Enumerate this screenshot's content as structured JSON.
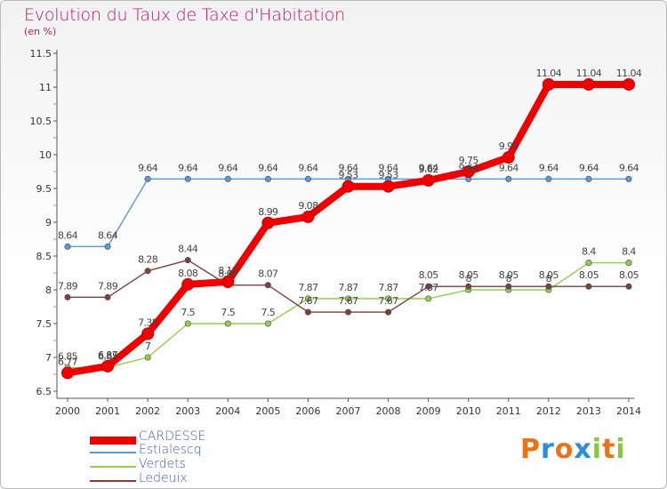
{
  "header": {
    "title": "Evolution du Taux de Taxe d'Habitation",
    "subtitle": "(en %)"
  },
  "logo": {
    "text": "Proxiti",
    "letters": [
      {
        "ch": "P",
        "color": "#e8731a"
      },
      {
        "ch": "r",
        "color": "#2a8fd6"
      },
      {
        "ch": "o",
        "color": "#e8731a"
      },
      {
        "ch": "x",
        "color": "#2a8fd6"
      },
      {
        "ch": "i",
        "color": "#8cc63f"
      },
      {
        "ch": "t",
        "color": "#e8731a"
      },
      {
        "ch": "i",
        "color": "#8cc63f"
      }
    ]
  },
  "chart_data": {
    "type": "line",
    "title": "Evolution du Taux de Taxe d'Habitation",
    "ylabel": "(en %)",
    "xlabel": "",
    "x": [
      "2000",
      "2001",
      "2002",
      "2003",
      "2004",
      "2005",
      "2006",
      "2007",
      "2008",
      "2009",
      "2010",
      "2011",
      "2012",
      "2013",
      "2014"
    ],
    "ylim": [
      6.5,
      11.5
    ],
    "yticks": [
      "6.5",
      "7",
      "7.5",
      "8",
      "8.5",
      "9",
      "9.5",
      "10",
      "10.5",
      "11",
      "11.5"
    ],
    "grid": false,
    "legend_position": "bottom-left",
    "series": [
      {
        "name": "Estialescq",
        "color": "#5b9bd5",
        "values": [
          8.64,
          8.64,
          9.64,
          9.64,
          9.64,
          9.64,
          9.64,
          9.64,
          9.64,
          9.64,
          9.64,
          9.64,
          9.64,
          9.64,
          9.64
        ],
        "labels": [
          "8.64",
          "8.64",
          "9.64",
          "9.64",
          "9.64",
          "9.64",
          "9.64",
          "9.64",
          "9.64",
          "9.64",
          "9.64",
          "9.64",
          "9.64",
          "9.64",
          "9.64"
        ]
      },
      {
        "name": "Verdets",
        "color": "#92d050",
        "values": [
          6.85,
          6.85,
          7,
          7.5,
          7.5,
          7.5,
          7.87,
          7.87,
          7.87,
          7.87,
          8,
          8,
          8,
          8.4,
          8.4
        ],
        "labels": [
          "6.85",
          "6.85",
          "7",
          "7.5",
          "7.5",
          "7.5",
          "7.87",
          "7.87",
          "7.87",
          "7.87",
          "8",
          "8",
          "8",
          "8.4",
          "8.4"
        ]
      },
      {
        "name": "Ledeuix",
        "color": "#7f3f3f",
        "values": [
          7.89,
          7.89,
          8.28,
          8.44,
          8.07,
          8.07,
          7.67,
          7.67,
          7.67,
          8.05,
          8.05,
          8.05,
          8.05,
          8.05,
          8.05
        ],
        "labels": [
          "7.89",
          "7.89",
          "8.28",
          "8.44",
          "8.07",
          "8.07",
          "7.67",
          "7.67",
          "7.67",
          "8.05",
          "8.05",
          "8.05",
          "8.05",
          "8.05",
          "8.05"
        ]
      },
      {
        "name": "CARDESSE",
        "color": "#ee0000",
        "values": [
          6.77,
          6.87,
          7.35,
          8.08,
          8.12,
          8.99,
          9.08,
          9.53,
          9.53,
          9.62,
          9.75,
          9.96,
          11.04,
          11.04,
          11.04
        ],
        "labels": [
          "6.77",
          "6.87",
          "7.35",
          "8.08",
          "8.12",
          "8.99",
          "9.08",
          "9.53",
          "9.53",
          "9.62",
          "9.75",
          "9.96",
          "11.04",
          "11.04",
          "11.04"
        ]
      }
    ],
    "legend": [
      {
        "name": "CARDESSE",
        "color": "#ee0000",
        "text_color": "#3b5bd6"
      },
      {
        "name": "Estialescq",
        "color": "#5b9bd5",
        "text_color": "#3b5bd6"
      },
      {
        "name": "Verdets",
        "color": "#92d050",
        "text_color": "#3b5bd6"
      },
      {
        "name": "Ledeuix",
        "color": "#7f3f3f",
        "text_color": "#3b5bd6"
      }
    ]
  }
}
